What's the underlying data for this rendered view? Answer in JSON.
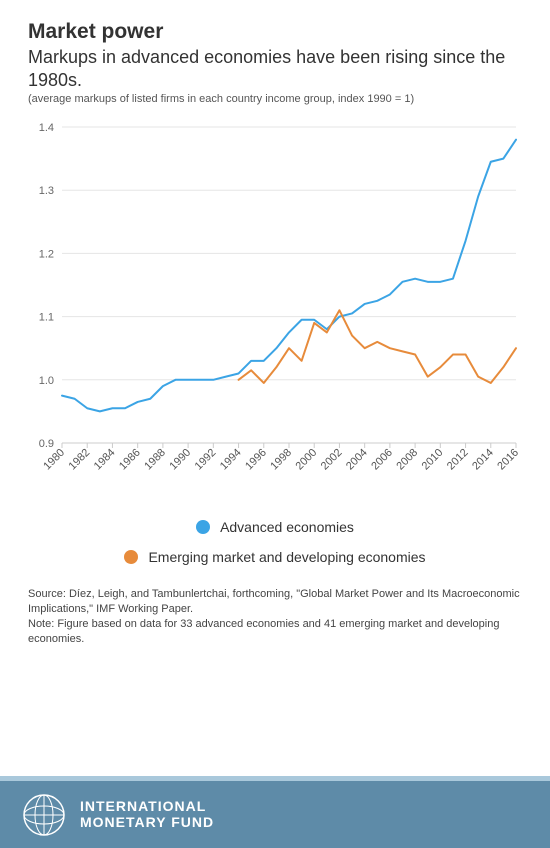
{
  "title": "Market power",
  "title_fontsize": 21,
  "subtitle": "Markups in advanced economies have been rising since the 1980s.",
  "subtitle_fontsize": 18,
  "chart_note": "(average markups of listed firms in each country income group, index 1990 = 1)",
  "chart": {
    "type": "line",
    "background_color": "#ffffff",
    "grid_color": "#e5e5e5",
    "axis_text_color": "#666666",
    "yaxis": {
      "min": 0.9,
      "max": 1.4,
      "ticks": [
        0.9,
        1.0,
        1.1,
        1.2,
        1.3,
        1.4
      ],
      "fontsize": 11
    },
    "xaxis": {
      "min": 1980,
      "max": 2016,
      "tick_step": 2,
      "ticks": [
        1980,
        1982,
        1984,
        1986,
        1988,
        1990,
        1992,
        1994,
        1996,
        1998,
        2000,
        2002,
        2004,
        2006,
        2008,
        2010,
        2012,
        2014,
        2016
      ],
      "label_rotation": -45,
      "fontsize": 11
    },
    "line_width": 2,
    "series": [
      {
        "key": "advanced",
        "label": "Advanced economies",
        "color": "#3ba4e5",
        "x_start": 1980,
        "y": [
          0.975,
          0.97,
          0.955,
          0.95,
          0.955,
          0.955,
          0.965,
          0.97,
          0.99,
          1.0,
          1.0,
          1.0,
          1.0,
          1.005,
          1.01,
          1.03,
          1.03,
          1.05,
          1.075,
          1.095,
          1.095,
          1.08,
          1.1,
          1.105,
          1.12,
          1.125,
          1.135,
          1.155,
          1.16,
          1.155,
          1.155,
          1.16,
          1.22,
          1.29,
          1.345,
          1.35,
          1.38
        ]
      },
      {
        "key": "emerging",
        "label": "Emerging market and developing economies",
        "color": "#e78b3b",
        "x_start": 1994,
        "y": [
          1.0,
          1.015,
          0.995,
          1.02,
          1.05,
          1.03,
          1.09,
          1.075,
          1.11,
          1.07,
          1.05,
          1.06,
          1.05,
          1.045,
          1.04,
          1.005,
          1.02,
          1.04,
          1.04,
          1.005,
          0.995,
          1.02,
          1.05
        ]
      }
    ]
  },
  "legend": {
    "fontsize": 14,
    "items": [
      {
        "label": "Advanced economies",
        "color": "#3ba4e5"
      },
      {
        "label": "Emerging market and developing economies",
        "color": "#e78b3b"
      }
    ]
  },
  "source_text": "Source: Díez, Leigh, and Tambunlertchai, forthcoming, \"Global Market Power and Its Macroeconomic Implications,\" IMF Working Paper.",
  "note_text": "Note: Figure based on data for 33 advanced economies and 41 emerging market and developing economies.",
  "footer": {
    "bg_color": "#5e8ba8",
    "top_border_color": "#a9c8db",
    "org_line1": "INTERNATIONAL",
    "org_line2": "MONETARY FUND",
    "text_color": "#ffffff"
  }
}
